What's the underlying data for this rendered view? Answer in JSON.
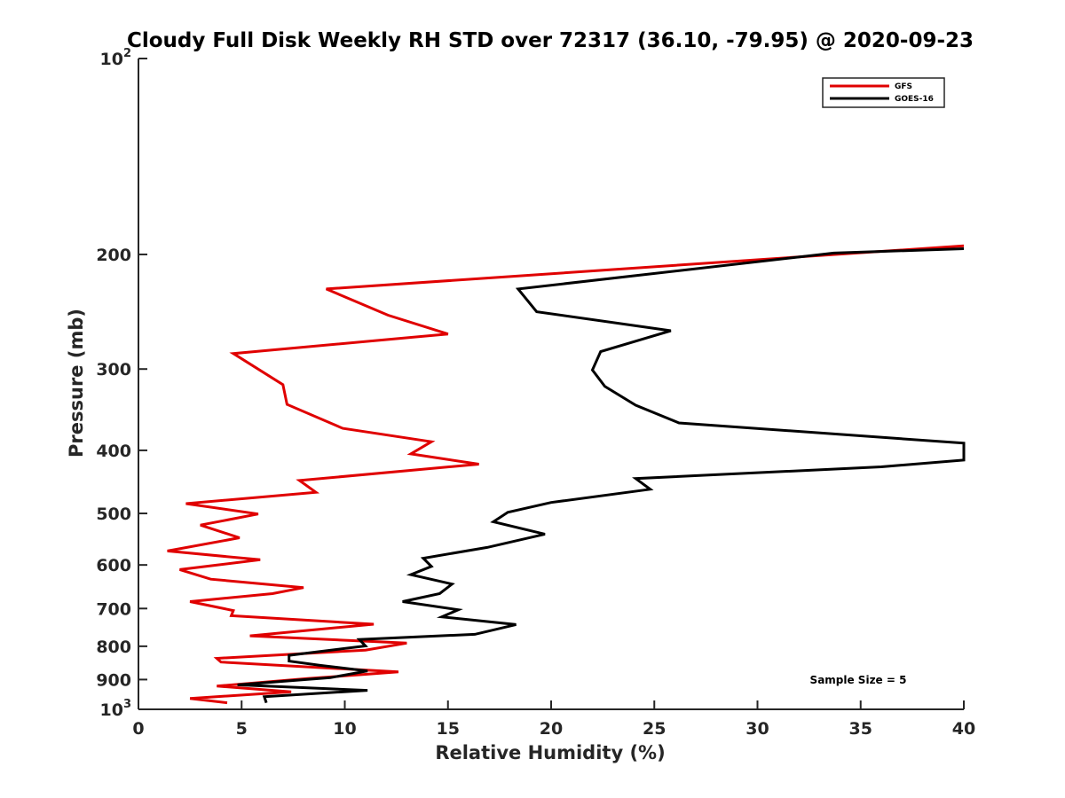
{
  "chart_data": {
    "type": "line",
    "title": "Cloudy Full Disk Weekly RH STD over 72317 (36.10, -79.95) @ 2020-09-23",
    "xlabel": "Relative Humidity (%)",
    "ylabel": "Pressure (mb)",
    "xlim": [
      0,
      40
    ],
    "ylim": [
      100,
      1000
    ],
    "y_scale": "log",
    "y_reversed": true,
    "x_ticks": [
      0,
      5,
      10,
      15,
      20,
      25,
      30,
      35,
      40
    ],
    "x_tick_labels": [
      "0",
      "5",
      "10",
      "15",
      "20",
      "25",
      "30",
      "35",
      "40"
    ],
    "y_ticks": [
      {
        "value": 100,
        "base": "10",
        "exp": "2"
      },
      {
        "value": 200,
        "label": "200"
      },
      {
        "value": 300,
        "label": "300"
      },
      {
        "value": 400,
        "label": "400"
      },
      {
        "value": 500,
        "label": "500"
      },
      {
        "value": 600,
        "label": "600"
      },
      {
        "value": 700,
        "label": "700"
      },
      {
        "value": 800,
        "label": "800"
      },
      {
        "value": 900,
        "label": "900"
      },
      {
        "value": 1000,
        "base": "10",
        "exp": "3"
      }
    ],
    "legend": {
      "position": "top-right"
    },
    "annotation": "Sample Size = 5",
    "series": [
      {
        "name": "GFS",
        "color": "#e00000",
        "points": [
          [
            40.0,
            194
          ],
          [
            9.1,
            226
          ],
          [
            12.1,
            248
          ],
          [
            15.0,
            265
          ],
          [
            4.6,
            284
          ],
          [
            7.0,
            317
          ],
          [
            7.2,
            340
          ],
          [
            9.9,
            370
          ],
          [
            14.2,
            388
          ],
          [
            13.2,
            405
          ],
          [
            16.5,
            420
          ],
          [
            7.8,
            445
          ],
          [
            8.6,
            464
          ],
          [
            2.3,
            483
          ],
          [
            5.8,
            501
          ],
          [
            3.0,
            521
          ],
          [
            4.9,
            545
          ],
          [
            1.4,
            571
          ],
          [
            5.9,
            589
          ],
          [
            2.0,
            610
          ],
          [
            3.5,
            631
          ],
          [
            8.0,
            650
          ],
          [
            6.5,
            664
          ],
          [
            2.5,
            683
          ],
          [
            4.6,
            705
          ],
          [
            4.5,
            718
          ],
          [
            11.4,
            740
          ],
          [
            5.4,
            771
          ],
          [
            13.0,
            791
          ],
          [
            11.0,
            811
          ],
          [
            3.8,
            835
          ],
          [
            4.0,
            846
          ],
          [
            12.6,
            876
          ],
          [
            8.2,
            897
          ],
          [
            3.8,
            921
          ],
          [
            7.4,
            940
          ],
          [
            2.5,
            962
          ],
          [
            4.3,
            977
          ]
        ]
      },
      {
        "name": "GOES-16",
        "color": "#000000",
        "points": [
          [
            40.0,
            196
          ],
          [
            33.7,
            199
          ],
          [
            18.4,
            226
          ],
          [
            19.3,
            245
          ],
          [
            25.8,
            262
          ],
          [
            22.4,
            282
          ],
          [
            22.0,
            301
          ],
          [
            22.6,
            319
          ],
          [
            24.1,
            341
          ],
          [
            26.2,
            363
          ],
          [
            40.0,
            390
          ],
          [
            40.0,
            414
          ],
          [
            36.0,
            424
          ],
          [
            24.1,
            442
          ],
          [
            24.8,
            459
          ],
          [
            20.0,
            481
          ],
          [
            17.9,
            498
          ],
          [
            17.2,
            515
          ],
          [
            19.7,
            538
          ],
          [
            16.9,
            564
          ],
          [
            13.8,
            586
          ],
          [
            14.2,
            603
          ],
          [
            13.2,
            621
          ],
          [
            15.2,
            642
          ],
          [
            14.6,
            664
          ],
          [
            12.8,
            683
          ],
          [
            15.5,
            703
          ],
          [
            14.7,
            721
          ],
          [
            18.3,
            741
          ],
          [
            16.3,
            767
          ],
          [
            10.7,
            781
          ],
          [
            11.0,
            799
          ],
          [
            7.3,
            826
          ],
          [
            7.3,
            843
          ],
          [
            8.8,
            856
          ],
          [
            11.1,
            873
          ],
          [
            9.3,
            894
          ],
          [
            4.8,
            917
          ],
          [
            11.1,
            935
          ],
          [
            6.1,
            956
          ],
          [
            6.2,
            977
          ]
        ]
      }
    ]
  }
}
